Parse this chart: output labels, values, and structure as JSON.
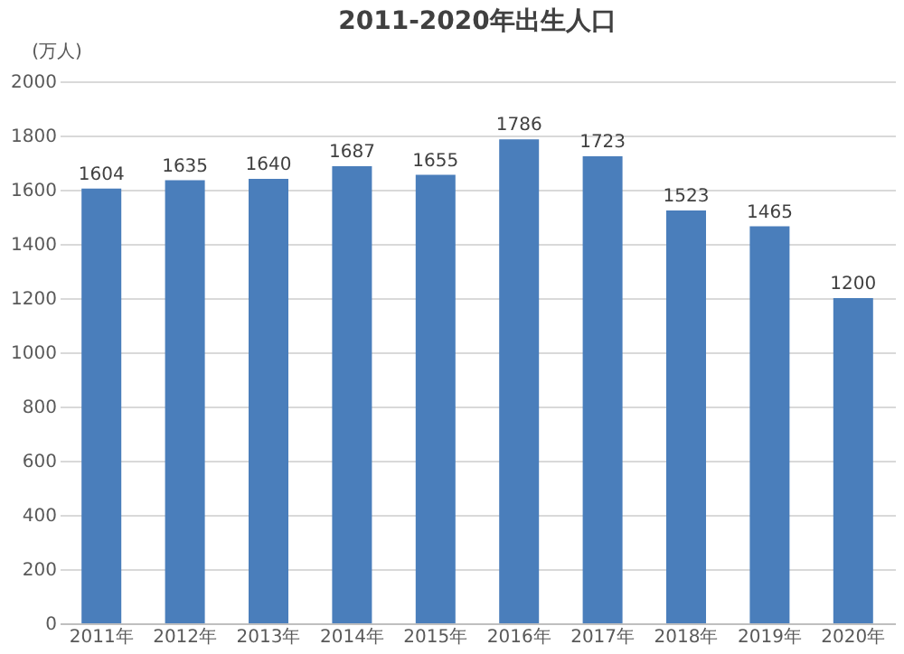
{
  "chart_data": {
    "type": "bar",
    "title": "2011-2020年出生人口",
    "ylabel": "(万人)",
    "categories": [
      "2011年",
      "2012年",
      "2013年",
      "2014年",
      "2015年",
      "2016年",
      "2017年",
      "2018年",
      "2019年",
      "2020年"
    ],
    "values": [
      1604,
      1635,
      1640,
      1687,
      1655,
      1786,
      1723,
      1523,
      1465,
      1200
    ],
    "color": "#4a7ebb",
    "ylim": [
      0,
      2000
    ],
    "yticks": [
      0,
      200,
      400,
      600,
      800,
      1000,
      1200,
      1400,
      1600,
      1800,
      2000
    ],
    "grid": "y",
    "data_labels": true
  }
}
